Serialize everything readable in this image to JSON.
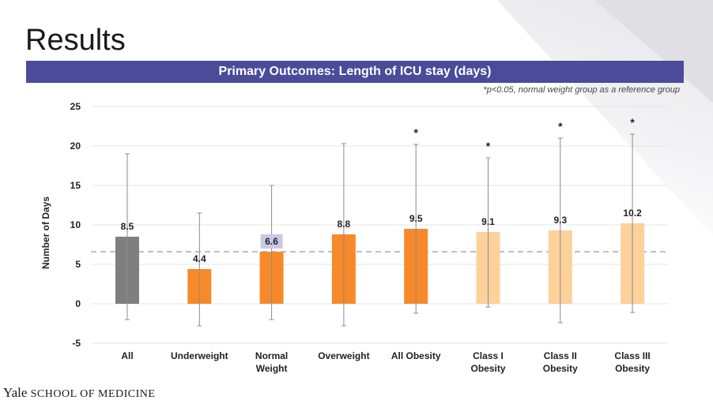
{
  "slide": {
    "title": "Results",
    "banner": "Primary Outcomes: Length of ICU stay (days)",
    "footnote": "*p<0.05, normal weight group as a reference group"
  },
  "footer": {
    "logo_name": "Yale",
    "logo_rest": "SCHOOL OF MEDICINE"
  },
  "colors": {
    "banner": "#4b4b9a",
    "gray_bar": "#7f7f7f",
    "orange_bar": "#f7892a",
    "light_orange_bar": "#fdd19a",
    "reference_line": "#a6a6d2",
    "highlight_label_bg": "#c9c9e6"
  },
  "chart_data": {
    "type": "bar",
    "categories": [
      "All",
      "Underweight",
      "Normal Weight",
      "Overweight",
      "All Obesity",
      "Class I Obesity",
      "Class II Obesity",
      "Class III Obesity"
    ],
    "category_lines": [
      [
        "All"
      ],
      [
        "Underweight"
      ],
      [
        "Normal",
        "Weight"
      ],
      [
        "Overweight"
      ],
      [
        "All Obesity"
      ],
      [
        "Class I",
        "Obesity"
      ],
      [
        "Class II",
        "Obesity"
      ],
      [
        "Class III",
        "Obesity"
      ]
    ],
    "values": [
      8.5,
      4.4,
      6.6,
      8.8,
      9.5,
      9.1,
      9.3,
      10.2
    ],
    "value_labels": [
      "8.5",
      "4.4",
      "6.6",
      "8.8",
      "9.5",
      "9.1",
      "9.3",
      "10.2"
    ],
    "error_low": [
      -2.0,
      -2.8,
      -2.0,
      -2.8,
      -1.2,
      -0.4,
      -2.4,
      -1.1
    ],
    "error_high": [
      19.0,
      11.5,
      15.0,
      20.3,
      20.2,
      18.5,
      21.0,
      21.5
    ],
    "significant": [
      false,
      false,
      false,
      false,
      true,
      true,
      true,
      true
    ],
    "significance_marker": "*",
    "bar_colors": [
      "#7f7f7f",
      "#f7892a",
      "#f7892a",
      "#f7892a",
      "#f7892a",
      "#fdd19a",
      "#fdd19a",
      "#fdd19a"
    ],
    "highlighted_label_index": 2,
    "reference_line_value": 6.6,
    "ylabel": "Number of Days",
    "xlabel": "",
    "ylim": [
      -5,
      25
    ],
    "yticks": [
      -5,
      0,
      5,
      10,
      15,
      20,
      25
    ],
    "grid": true
  }
}
